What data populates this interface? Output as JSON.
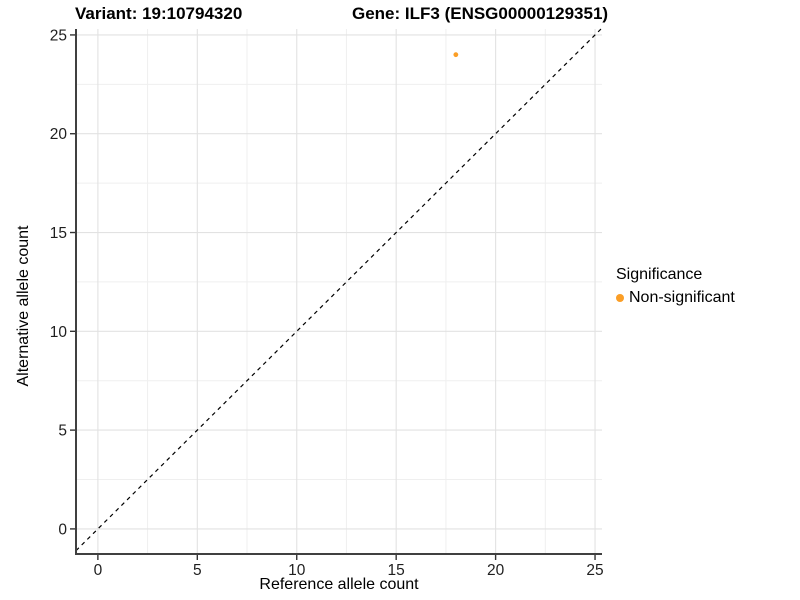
{
  "chart_data": {
    "type": "scatter",
    "titles": {
      "left": "Variant: 19:10794320",
      "right": "Gene: ILF3 (ENSG00000129351)"
    },
    "xlabel": "Reference allele count",
    "ylabel": "Alternative allele count",
    "x_ticks": [
      0,
      5,
      10,
      15,
      20,
      25
    ],
    "y_ticks": [
      0,
      5,
      10,
      15,
      20,
      25
    ],
    "x_minor_ticks": [
      2.5,
      7.5,
      12.5,
      17.5,
      22.5
    ],
    "y_minor_ticks": [
      2.5,
      7.5,
      12.5,
      17.5,
      22.5
    ],
    "xlim": [
      -1.1,
      25.35
    ],
    "ylim": [
      -1.27,
      25.3
    ],
    "grid": true,
    "series": [
      {
        "name": "Non-significant",
        "color": "#FB9E26",
        "points": [
          {
            "x": 18,
            "y": 24
          }
        ]
      }
    ],
    "abline": {
      "slope": 1,
      "intercept": 0,
      "style": "dashed",
      "color": "#000000"
    },
    "legend": {
      "title": "Significance",
      "position": "right",
      "items": [
        {
          "label": "Non-significant",
          "color": "#FB9E26"
        }
      ]
    }
  },
  "colors": {
    "background": "#FFFFFF",
    "grid_major": "#E2E2E2",
    "grid_minor": "#EFEFEF",
    "axis_line": "#404040",
    "tick_mark": "#333333",
    "tick_label": "#1F1F1F"
  }
}
